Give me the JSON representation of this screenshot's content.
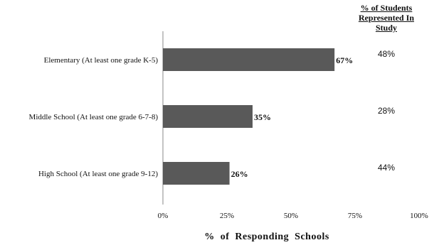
{
  "chart_data": {
    "type": "bar",
    "orientation": "horizontal",
    "categories": [
      "Elementary (At least one grade K-5)",
      "Middle School (At least one grade 6-7-8)",
      "High School (At least one grade 9-12)"
    ],
    "values": [
      67,
      35,
      26
    ],
    "data_labels": [
      "67%",
      "35%",
      "26%"
    ],
    "xlabel": "% of Responding Schools",
    "xlim": [
      0,
      100
    ],
    "x_ticks": [
      "0%",
      "25%",
      "50%",
      "75%",
      "100%"
    ],
    "bar_color": "#595959",
    "grid": false,
    "side_column": {
      "header": "% of Students Represented In Study",
      "values": [
        "48%",
        "28%",
        "44%"
      ]
    }
  }
}
